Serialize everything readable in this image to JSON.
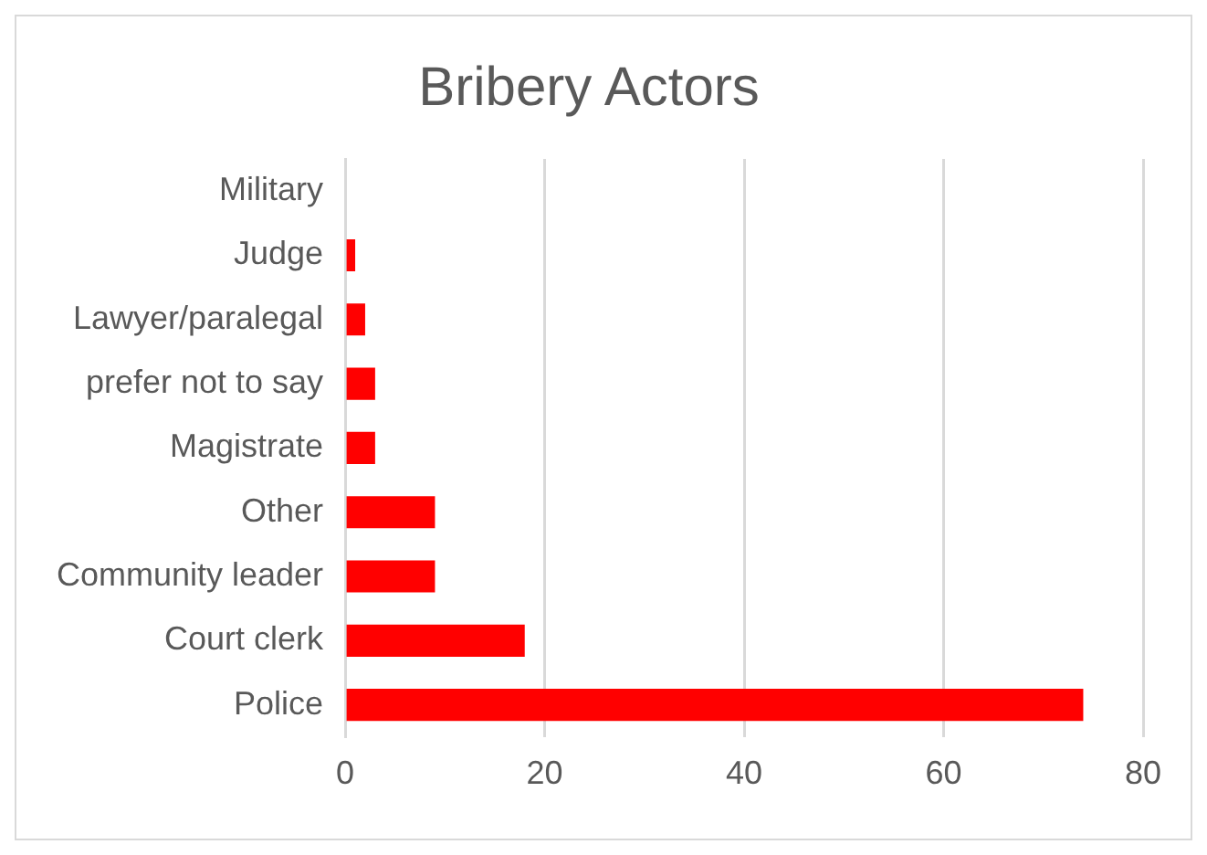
{
  "chart_data": {
    "type": "bar",
    "orientation": "horizontal",
    "title": "Bribery Actors",
    "categories": [
      "Military",
      "Judge",
      "Lawyer/paralegal",
      "prefer not to say",
      "Magistrate",
      "Other",
      "Community leader",
      "Court clerk",
      "Police"
    ],
    "values": [
      0,
      1,
      2,
      3,
      3,
      9,
      9,
      18,
      74
    ],
    "color": "#ff0000",
    "xlim": [
      0,
      80
    ],
    "xticks": [
      0,
      20,
      40,
      60,
      80
    ],
    "grid": "x",
    "legend": false
  }
}
